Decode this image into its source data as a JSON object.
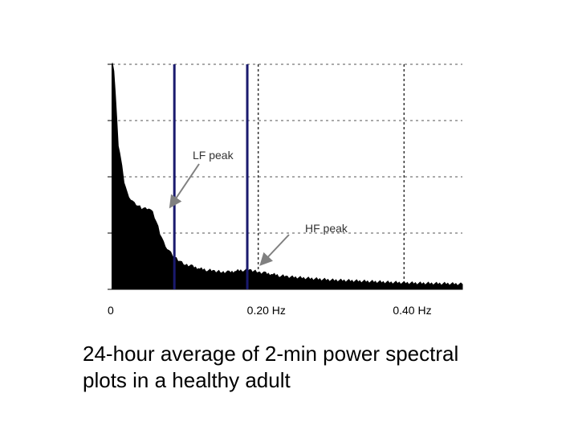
{
  "chart_data": {
    "type": "area",
    "title": "",
    "xlabel": "",
    "ylabel": "",
    "xlim": [
      0,
      0.48
    ],
    "ylim": [
      0,
      1
    ],
    "grid": true,
    "x_tick_labels": [
      {
        "value": 0,
        "label": "0"
      },
      {
        "value": 0.2,
        "label": "0.20 Hz"
      },
      {
        "value": 0.4,
        "label": "0.40 Hz"
      }
    ],
    "series": [
      {
        "x": [
          0,
          0.002,
          0.004,
          0.006,
          0.008,
          0.01,
          0.013,
          0.016,
          0.02,
          0.025,
          0.03,
          0.035,
          0.04,
          0.045,
          0.05,
          0.055,
          0.06,
          0.065,
          0.07,
          0.075,
          0.08,
          0.085,
          0.09,
          0.095,
          0.1,
          0.11,
          0.12,
          0.13,
          0.14,
          0.15,
          0.16,
          0.17,
          0.18,
          0.19,
          0.2,
          0.21,
          0.22,
          0.23,
          0.24,
          0.26,
          0.28,
          0.3,
          0.32,
          0.35,
          0.38,
          0.4,
          0.42,
          0.44,
          0.46,
          0.48
        ],
        "y": [
          1.0,
          0.97,
          0.88,
          0.76,
          0.64,
          0.6,
          0.55,
          0.48,
          0.43,
          0.4,
          0.38,
          0.37,
          0.36,
          0.36,
          0.36,
          0.34,
          0.3,
          0.25,
          0.21,
          0.18,
          0.16,
          0.14,
          0.13,
          0.12,
          0.11,
          0.1,
          0.09,
          0.085,
          0.08,
          0.076,
          0.075,
          0.08,
          0.085,
          0.084,
          0.075,
          0.07,
          0.065,
          0.06,
          0.055,
          0.05,
          0.045,
          0.04,
          0.038,
          0.034,
          0.03,
          0.028,
          0.026,
          0.025,
          0.024,
          0.022
        ]
      }
    ],
    "markers": [
      {
        "name": "LF peak line",
        "x": 0.085,
        "color": "#1a1a6e"
      },
      {
        "name": "HF peak line",
        "x": 0.185,
        "color": "#1a1a6e"
      }
    ],
    "annotations": [
      {
        "text": "LF peak",
        "target_x": 0.083
      },
      {
        "text": "HF peak",
        "target_x": 0.19
      }
    ]
  },
  "caption": {
    "line1": "24-hour average of 2-min power spectral",
    "line2": "plots in a healthy adult"
  }
}
